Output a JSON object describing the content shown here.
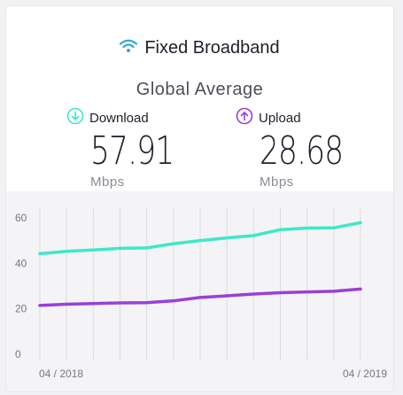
{
  "card": {
    "title": "Fixed Broadband",
    "subtitle": "Global Average",
    "download": {
      "label": "Download",
      "value": "57.91",
      "unit": "Mbps"
    },
    "upload": {
      "label": "Upload",
      "value": "28.68",
      "unit": "Mbps"
    }
  },
  "colors": {
    "download": "#3ee8c8",
    "upload": "#9b3fd6",
    "wifi": "#2fa8e0",
    "grid": "#dcdce2",
    "tick": "#777784"
  },
  "icons": {
    "title": "wifi-icon",
    "download": "download-arrow-icon",
    "upload": "upload-arrow-icon"
  },
  "chart_data": {
    "type": "line",
    "x": [
      "04/2018",
      "05/2018",
      "06/2018",
      "07/2018",
      "08/2018",
      "09/2018",
      "10/2018",
      "11/2018",
      "12/2018",
      "01/2019",
      "02/2019",
      "03/2019",
      "04/2019"
    ],
    "x_tick_labels": [
      "04 / 2018",
      "04 / 2019"
    ],
    "y_ticks": [
      0,
      20,
      40,
      60
    ],
    "ylim": [
      0,
      60
    ],
    "grid": "vertical",
    "series": [
      {
        "name": "Download",
        "values": [
          44.2,
          45.3,
          45.9,
          46.6,
          46.8,
          48.6,
          50.0,
          51.2,
          52.2,
          54.8,
          55.5,
          55.6,
          57.9
        ]
      },
      {
        "name": "Upload",
        "values": [
          21.5,
          22.0,
          22.3,
          22.6,
          22.7,
          23.5,
          25.0,
          25.7,
          26.5,
          27.1,
          27.4,
          27.7,
          28.7
        ]
      }
    ]
  }
}
